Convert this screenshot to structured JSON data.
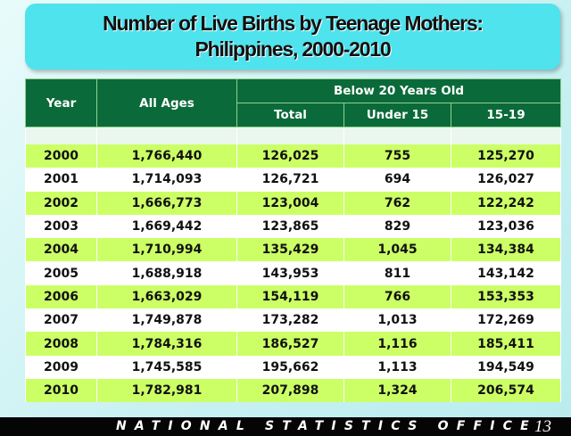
{
  "header": {
    "title_line1": "Number of Live Births by Teenage Mothers:",
    "title_line2": "Philippines, 2000-2010"
  },
  "table": {
    "columns": {
      "year": "Year",
      "all_ages": "All Ages",
      "group": "Below 20 Years Old",
      "total": "Total",
      "under_15": "Under 15",
      "age_15_19": "15-19"
    },
    "rows": [
      [
        "2000",
        "1,766,440",
        "126,025",
        "755",
        "125,270"
      ],
      [
        "2001",
        "1,714,093",
        "126,721",
        "694",
        "126,027"
      ],
      [
        "2002",
        "1,666,773",
        "123,004",
        "762",
        "122,242"
      ],
      [
        "2003",
        "1,669,442",
        "123,865",
        "829",
        "123,036"
      ],
      [
        "2004",
        "1,710,994",
        "135,429",
        "1,045",
        "134,384"
      ],
      [
        "2005",
        "1,688,918",
        "143,953",
        "811",
        "143,142"
      ],
      [
        "2006",
        "1,663,029",
        "154,119",
        "766",
        "153,353"
      ],
      [
        "2007",
        "1,749,878",
        "173,282",
        "1,013",
        "172,269"
      ],
      [
        "2008",
        "1,784,316",
        "186,527",
        "1,116",
        "185,411"
      ],
      [
        "2009",
        "1,745,585",
        "195,662",
        "1,113",
        "194,549"
      ],
      [
        "2010",
        "1,782,981",
        "207,898",
        "1,324",
        "206,574"
      ]
    ]
  },
  "footer": {
    "organization": "NATIONAL STATISTICS OFFICE",
    "page_number": "13"
  }
}
